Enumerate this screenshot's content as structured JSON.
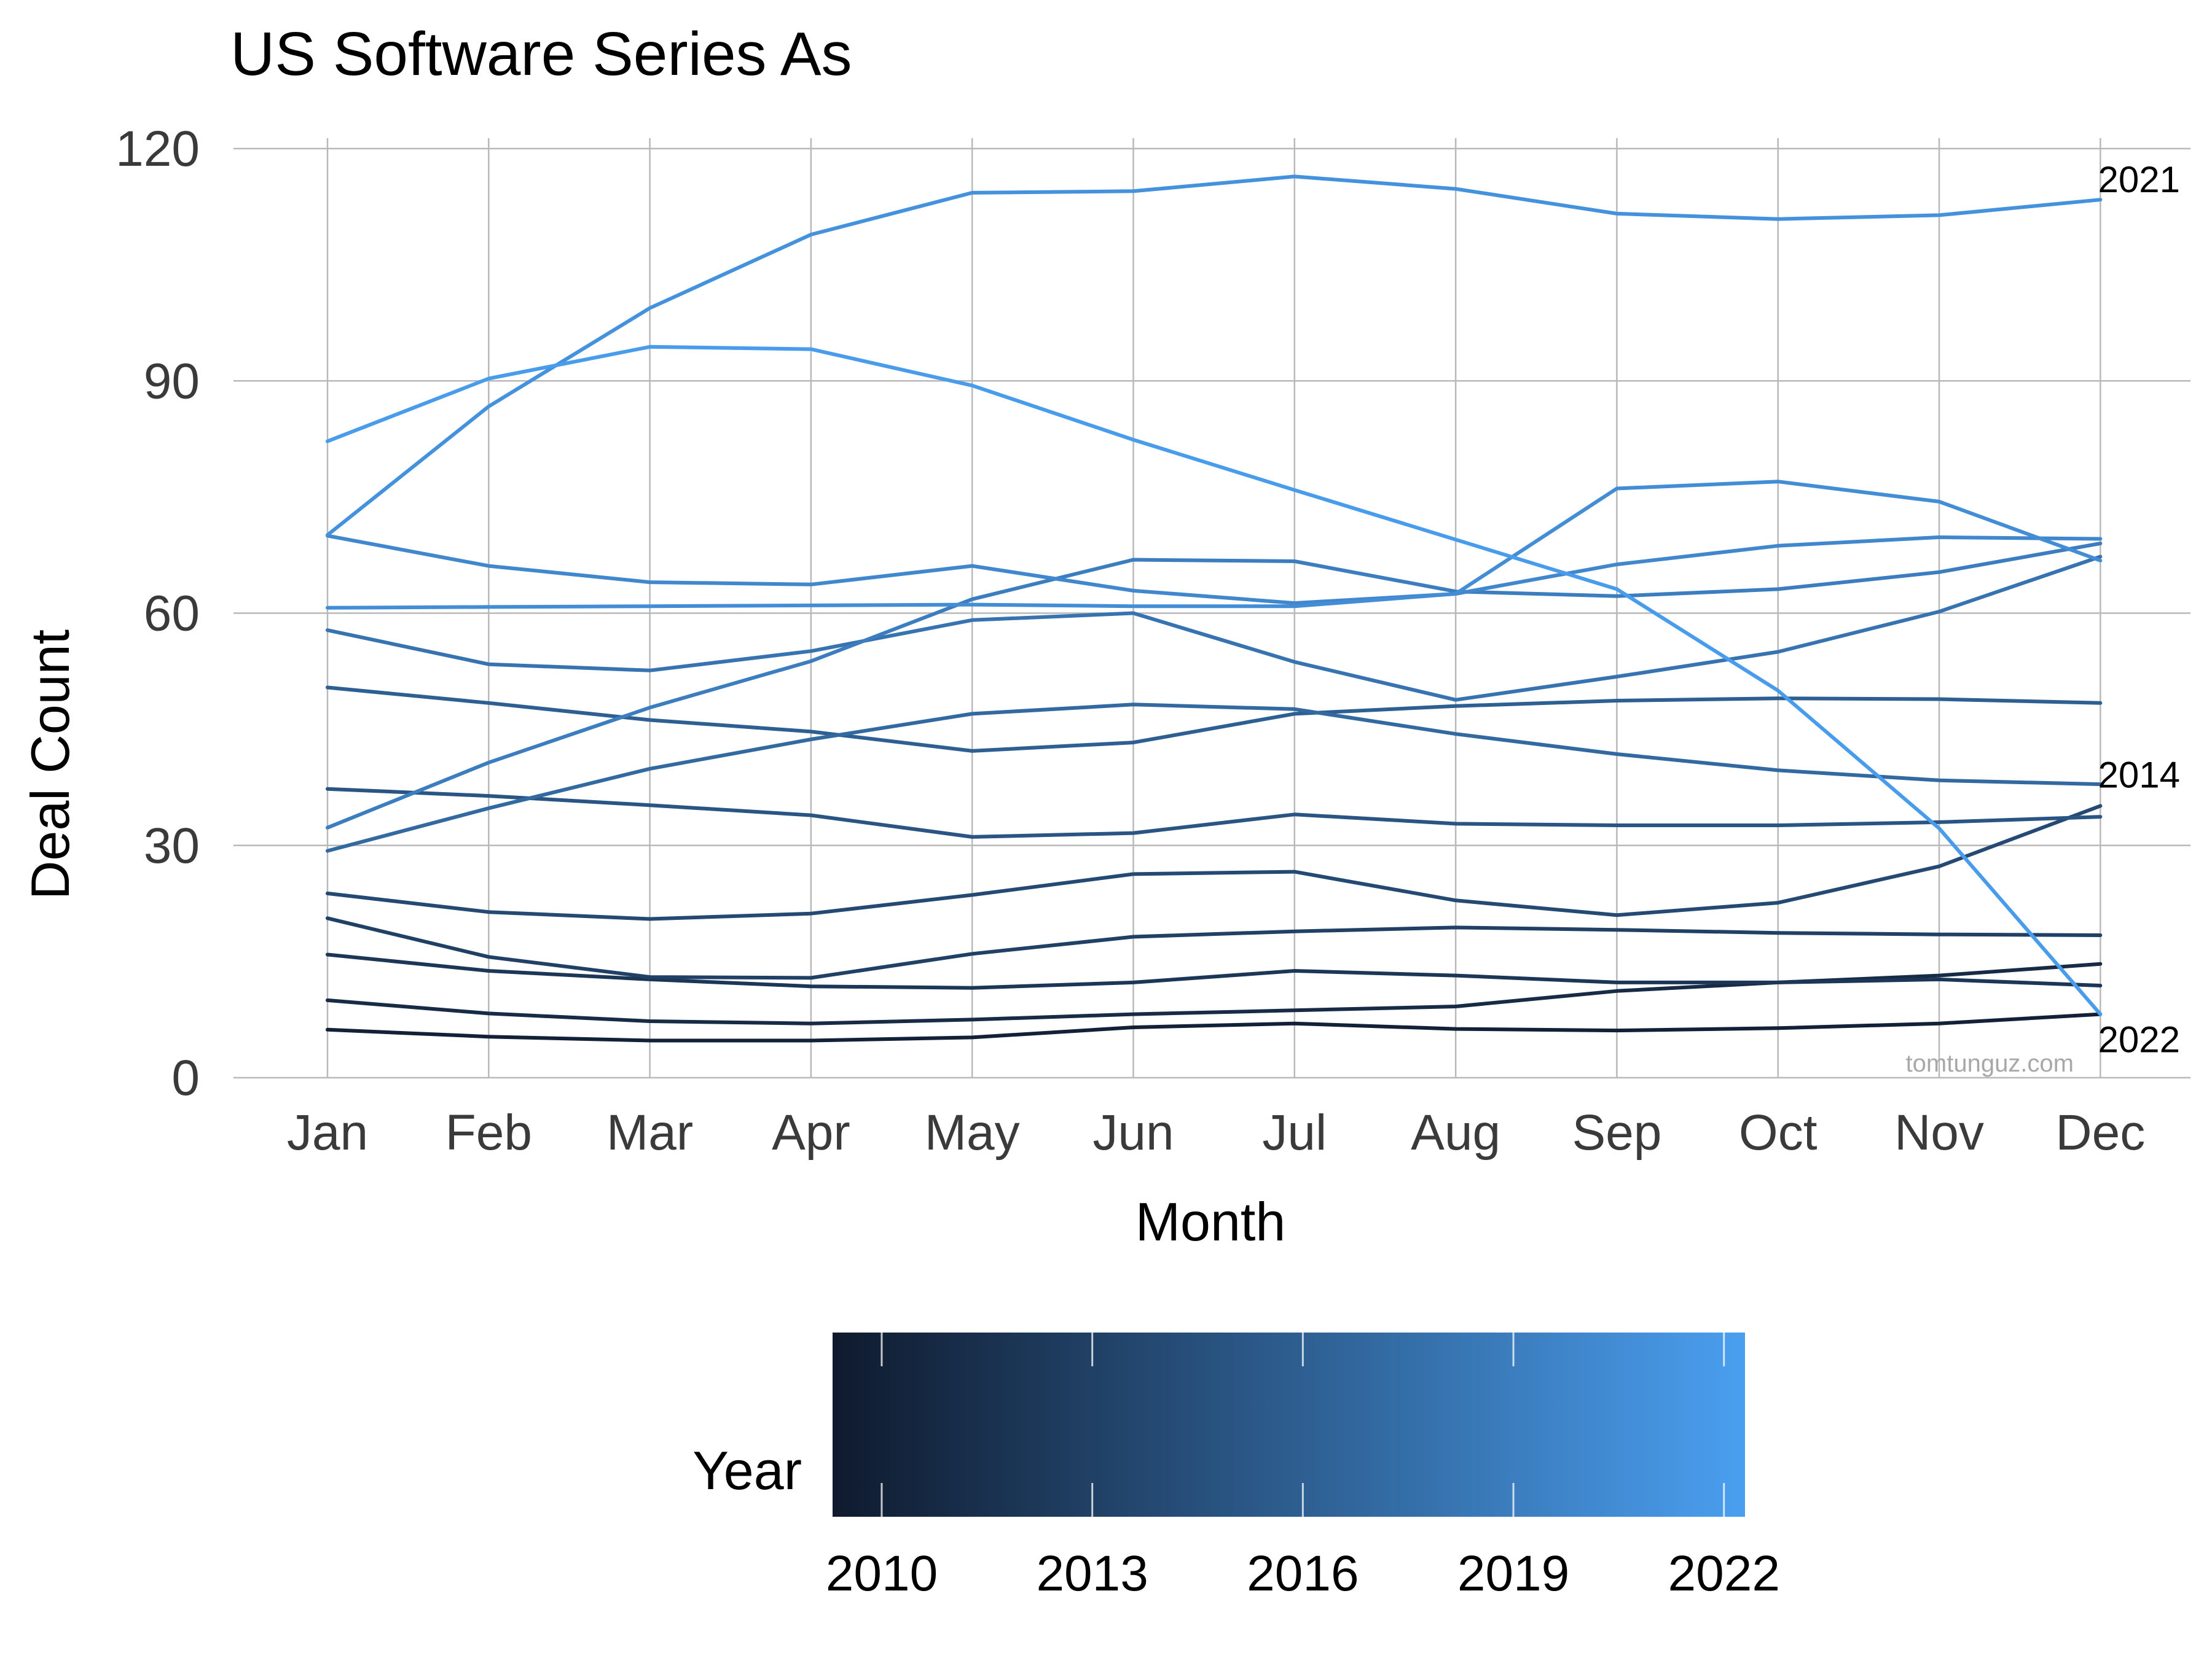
{
  "chart_data": {
    "type": "line",
    "title": "US Software Series As",
    "xlabel": "Month",
    "ylabel": "Deal Count",
    "categories": [
      "Jan",
      "Feb",
      "Mar",
      "Apr",
      "May",
      "Jun",
      "Jul",
      "Aug",
      "Sep",
      "Oct",
      "Nov",
      "Dec"
    ],
    "ylim": [
      0,
      120
    ],
    "yticks": [
      0,
      30,
      60,
      90,
      120
    ],
    "grid": true,
    "series": [
      {
        "year": 2010,
        "values": [
          6.2,
          5.3,
          4.8,
          4.8,
          5.2,
          6.5,
          7.0,
          6.3,
          6.1,
          6.4,
          7.0,
          8.2
        ]
      },
      {
        "year": 2011,
        "values": [
          10.0,
          8.3,
          7.3,
          7.0,
          7.5,
          8.2,
          8.7,
          9.2,
          11.2,
          12.3,
          13.2,
          14.7
        ]
      },
      {
        "year": 2012,
        "values": [
          15.9,
          13.8,
          12.7,
          11.8,
          11.6,
          12.3,
          13.8,
          13.2,
          12.3,
          12.3,
          12.7,
          11.9
        ]
      },
      {
        "year": 2013,
        "values": [
          20.6,
          15.6,
          13.0,
          12.9,
          16.0,
          18.2,
          18.9,
          19.4,
          19.1,
          18.7,
          18.5,
          18.4
        ]
      },
      {
        "year": 2014,
        "values": [
          23.8,
          21.4,
          20.5,
          21.2,
          23.6,
          26.3,
          26.6,
          22.9,
          21.0,
          22.6,
          27.3,
          35.1
        ]
      },
      {
        "year": 2015,
        "values": [
          37.3,
          36.4,
          35.2,
          33.9,
          31.1,
          31.6,
          34.0,
          32.8,
          32.6,
          32.6,
          33.0,
          33.7
        ]
      },
      {
        "year": 2016,
        "values": [
          50.4,
          48.4,
          46.2,
          44.7,
          42.2,
          43.3,
          47.0,
          48.0,
          48.7,
          49.0,
          48.9,
          48.4
        ]
      },
      {
        "year": 2017,
        "values": [
          29.3,
          34.8,
          39.9,
          43.7,
          47.0,
          48.2,
          47.6,
          44.4,
          41.8,
          39.7,
          38.4,
          37.9
        ]
      },
      {
        "year": 2018,
        "values": [
          57.8,
          53.4,
          52.6,
          55.1,
          59.1,
          60.0,
          53.7,
          48.8,
          51.8,
          55.0,
          60.2,
          67.3
        ]
      },
      {
        "year": 2019,
        "values": [
          32.3,
          40.7,
          47.8,
          53.8,
          61.8,
          66.9,
          66.7,
          62.8,
          62.2,
          63.1,
          65.3,
          69.0
        ]
      },
      {
        "year": 2020,
        "values": [
          70.0,
          66.1,
          64.0,
          63.7,
          66.1,
          62.9,
          61.3,
          62.5,
          66.3,
          68.7,
          69.8,
          69.6
        ]
      },
      {
        "year": 2020.5,
        "values": [
          60.7,
          60.8,
          60.9,
          61.0,
          61.1,
          60.9,
          60.9,
          62.5,
          76.1,
          77.0,
          74.4,
          66.8
        ]
      },
      {
        "year": 2021,
        "values": [
          70.1,
          86.7,
          99.4,
          108.9,
          114.3,
          114.5,
          116.4,
          114.8,
          111.6,
          110.9,
          111.4,
          113.4
        ]
      },
      {
        "year": 2022,
        "values": [
          82.2,
          90.3,
          94.4,
          94.1,
          89.4,
          82.4,
          75.9,
          69.5,
          63.1,
          50.0,
          32.2,
          8.2
        ]
      }
    ],
    "end_labels": [
      {
        "text": "2021",
        "series_year": 2021
      },
      {
        "text": "2014",
        "series_year": 2014
      },
      {
        "text": "2022",
        "series_year": 2022
      }
    ],
    "legend": {
      "title": "Year",
      "position": "bottom",
      "type": "colorbar",
      "min": 2009.3,
      "max": 2022.3,
      "color_low": "#0f1a2d",
      "color_high": "#4a9ff0",
      "ticks": [
        "2010",
        "2013",
        "2016",
        "2019",
        "2022"
      ]
    },
    "watermark": "tomtunguz.com"
  }
}
